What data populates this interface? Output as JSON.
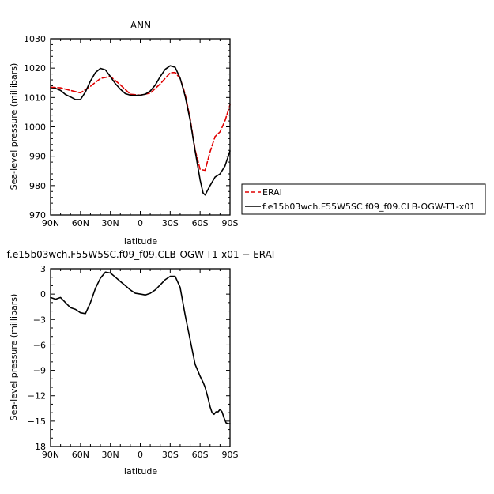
{
  "chart_data": [
    {
      "type": "line",
      "title": "ANN",
      "xlabel": "latitude",
      "ylabel": "Sea-level pressure (millibars)",
      "x_tick_labels": [
        "90N",
        "60N",
        "30N",
        "0",
        "30S",
        "60S",
        "90S"
      ],
      "x_tick_values": [
        90,
        60,
        30,
        0,
        -30,
        -60,
        -90
      ],
      "y_ticks": [
        970,
        980,
        990,
        1000,
        1010,
        1020,
        1030
      ],
      "xlim": [
        90,
        -90
      ],
      "ylim": [
        970,
        1030
      ],
      "legend_position": "right",
      "series": [
        {
          "name": "ERAI",
          "color": "#e00000",
          "dash": "dashed",
          "x": [
            90,
            80,
            70,
            60,
            50,
            40,
            30,
            20,
            10,
            0,
            -10,
            -20,
            -30,
            -35,
            -40,
            -45,
            -50,
            -55,
            -60,
            -65,
            -70,
            -75,
            -80,
            -85,
            -90
          ],
          "y": [
            1013.5,
            1013.3,
            1012.4,
            1011.6,
            1013.8,
            1016.5,
            1017.2,
            1014.3,
            1011.1,
            1010.8,
            1011.5,
            1014.6,
            1018.4,
            1018.5,
            1016.5,
            1011.1,
            1002.8,
            992.1,
            985.5,
            985.2,
            991.5,
            996.7,
            998.3,
            1002.1,
            1007.5
          ]
        },
        {
          "name": "f.e15b03wch.F55W5SC.f09_f09.CLB-OGW-T1-x01",
          "color": "#000000",
          "dash": "solid",
          "x": [
            90,
            85,
            80,
            75,
            70,
            65,
            60,
            55,
            50,
            45,
            40,
            35,
            30,
            25,
            20,
            15,
            10,
            5,
            0,
            -5,
            -10,
            -15,
            -20,
            -25,
            -30,
            -35,
            -40,
            -45,
            -50,
            -55,
            -60,
            -63,
            -65,
            -70,
            -75,
            -80,
            -85,
            -90
          ],
          "y": [
            1013.0,
            1013.1,
            1012.4,
            1011.0,
            1010.2,
            1009.3,
            1009.3,
            1011.9,
            1015.6,
            1018.5,
            1019.9,
            1019.4,
            1017.1,
            1014.7,
            1012.8,
            1011.3,
            1010.8,
            1010.7,
            1010.8,
            1011.1,
            1012.2,
            1014.2,
            1017.1,
            1019.6,
            1020.8,
            1020.3,
            1016.6,
            1010.4,
            1002.2,
            991.7,
            981.9,
            977.5,
            976.8,
            980.0,
            982.9,
            984.0,
            986.7,
            991.8
          ]
        }
      ]
    },
    {
      "type": "line",
      "title": "f.e15b03wch.F55W5SC.f09_f09.CLB-OGW-T1-x01 − ERAI",
      "xlabel": "latitude",
      "ylabel": "Sea-level pressure (millibars)",
      "x_tick_labels": [
        "90N",
        "60N",
        "30N",
        "0",
        "30S",
        "60S",
        "90S"
      ],
      "x_tick_values": [
        90,
        60,
        30,
        0,
        -30,
        -60,
        -90
      ],
      "y_tick_labels": [
        "3",
        "0",
        "−3",
        "−6",
        "−9",
        "−12",
        "−15",
        "−18"
      ],
      "y_ticks": [
        3,
        0,
        -3,
        -6,
        -9,
        -12,
        -15,
        -18
      ],
      "xlim": [
        90,
        -90
      ],
      "ylim": [
        -18,
        3
      ],
      "series": [
        {
          "name": "",
          "color": "#000000",
          "dash": "solid",
          "x": [
            90,
            85,
            80,
            75,
            70,
            65,
            60,
            55,
            50,
            45,
            40,
            35,
            30,
            25,
            20,
            15,
            10,
            5,
            0,
            -5,
            -10,
            -15,
            -20,
            -25,
            -30,
            -35,
            -40,
            -45,
            -50,
            -55,
            -60,
            -63,
            -65,
            -68,
            -70,
            -72,
            -74,
            -76,
            -78,
            -80,
            -82,
            -84,
            -86,
            -88,
            -90
          ],
          "y": [
            -0.4,
            -0.6,
            -0.4,
            -1.0,
            -1.6,
            -1.8,
            -2.2,
            -2.3,
            -1.0,
            0.7,
            1.9,
            2.6,
            2.5,
            2.0,
            1.5,
            1.0,
            0.5,
            0.1,
            0.0,
            -0.1,
            0.1,
            0.5,
            1.1,
            1.7,
            2.1,
            2.1,
            0.8,
            -2.5,
            -5.4,
            -8.3,
            -9.7,
            -10.4,
            -11.0,
            -12.3,
            -13.3,
            -14.0,
            -14.2,
            -13.9,
            -13.9,
            -13.6,
            -13.9,
            -14.6,
            -15.2,
            -15.3,
            -15.3
          ]
        }
      ]
    }
  ]
}
